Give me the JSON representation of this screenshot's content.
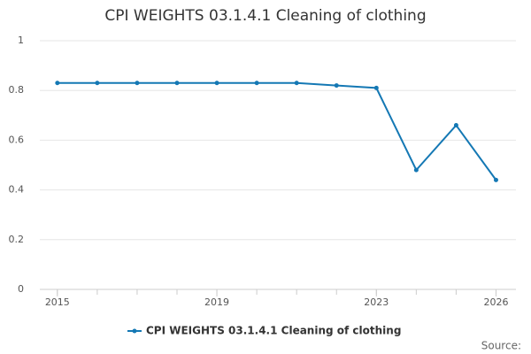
{
  "chart_data": {
    "type": "line",
    "title": "CPI WEIGHTS 03.1.4.1 Cleaning of clothing",
    "x": [
      2015,
      2016,
      2017,
      2018,
      2019,
      2020,
      2021,
      2022,
      2023,
      2024,
      2025,
      2026
    ],
    "series": [
      {
        "name": "CPI WEIGHTS 03.1.4.1 Cleaning of clothing",
        "color": "#1478b4",
        "values": [
          0.83,
          0.83,
          0.83,
          0.83,
          0.83,
          0.83,
          0.83,
          0.82,
          0.81,
          0.48,
          0.66,
          0.44
        ]
      }
    ],
    "xlim": [
      2014.56,
      2026.5
    ],
    "xticks": [
      2015,
      2019,
      2023,
      2026
    ],
    "ylim": [
      0,
      1
    ],
    "yticks": [
      0,
      0.2,
      0.4,
      0.6,
      0.8,
      1
    ],
    "grid": true,
    "legend": "bottom",
    "source": "Source:"
  }
}
